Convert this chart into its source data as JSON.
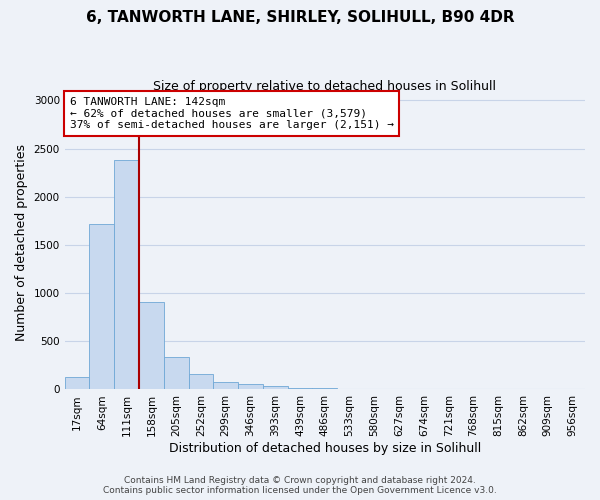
{
  "title": "6, TANWORTH LANE, SHIRLEY, SOLIHULL, B90 4DR",
  "subtitle": "Size of property relative to detached houses in Solihull",
  "xlabel": "Distribution of detached houses by size in Solihull",
  "ylabel": "Number of detached properties",
  "bar_values": [
    130,
    1720,
    2380,
    910,
    340,
    160,
    80,
    55,
    40,
    20,
    15,
    0,
    0,
    0,
    0,
    0,
    0,
    0,
    0,
    0,
    0
  ],
  "bar_labels": [
    "17sqm",
    "64sqm",
    "111sqm",
    "158sqm",
    "205sqm",
    "252sqm",
    "299sqm",
    "346sqm",
    "393sqm",
    "439sqm",
    "486sqm",
    "533sqm",
    "580sqm",
    "627sqm",
    "674sqm",
    "721sqm",
    "768sqm",
    "815sqm",
    "862sqm",
    "909sqm",
    "956sqm"
  ],
  "bar_color": "#c8d9ef",
  "bar_edge_color": "#6fa8d6",
  "grid_color": "#c8d4e8",
  "background_color": "#eef2f8",
  "vline_color": "#aa0000",
  "annotation_box_color": "#cc0000",
  "annotation_text_line1": "6 TANWORTH LANE: 142sqm",
  "annotation_text_line2": "← 62% of detached houses are smaller (3,579)",
  "annotation_text_line3": "37% of semi-detached houses are larger (2,151) →",
  "ylim": [
    0,
    3050
  ],
  "yticks": [
    0,
    500,
    1000,
    1500,
    2000,
    2500,
    3000
  ],
  "footer_line1": "Contains HM Land Registry data © Crown copyright and database right 2024.",
  "footer_line2": "Contains public sector information licensed under the Open Government Licence v3.0.",
  "title_fontsize": 11,
  "subtitle_fontsize": 9,
  "axis_label_fontsize": 9,
  "tick_fontsize": 7.5,
  "footer_fontsize": 6.5
}
